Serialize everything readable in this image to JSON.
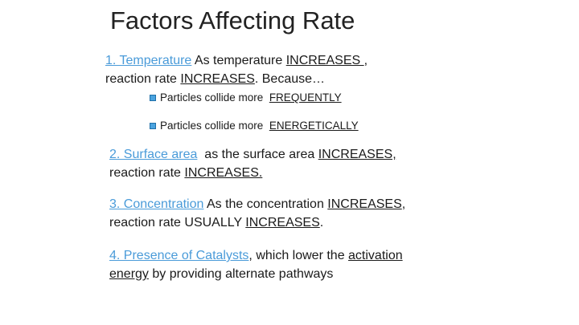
{
  "slide": {
    "title": "Factors Affecting Rate"
  },
  "factors": [
    {
      "heading": "1. Temperature",
      "text1": " As temperature ",
      "emph1": "INCREASES ",
      "text2": ",",
      "text3": "reaction rate ",
      "emph2": "INCREASES",
      "text4": ". Because…",
      "bullets": [
        {
          "prefix": "Particles collide more ",
          "emph": "FREQUENTLY"
        },
        {
          "prefix": "Particles collide more ",
          "emph": "ENERGETICALLY"
        }
      ]
    },
    {
      "heading": "2. Surface area",
      "text1": "  as the surface area ",
      "emph1": "INCREASES,",
      "text2": "reaction rate ",
      "emph2": "INCREASES."
    },
    {
      "heading": "3. Concentration",
      "text1": " As the concentration ",
      "emph1": "INCREASES",
      "text2": ",",
      "text3": "reaction rate USUALLY ",
      "emph2": "INCREASES",
      "text4": "."
    },
    {
      "heading": "4. Presence of Catalysts",
      "text1": ", which lower the ",
      "emph1": "activation",
      "emph2": "energy",
      "text2": " by providing alternate pathways"
    }
  ],
  "colors": {
    "link": "#4a9bd9",
    "bullet": "#4aa3df",
    "text": "#1a1a1a"
  },
  "icons": {
    "bullet": "square-bullet-icon"
  }
}
